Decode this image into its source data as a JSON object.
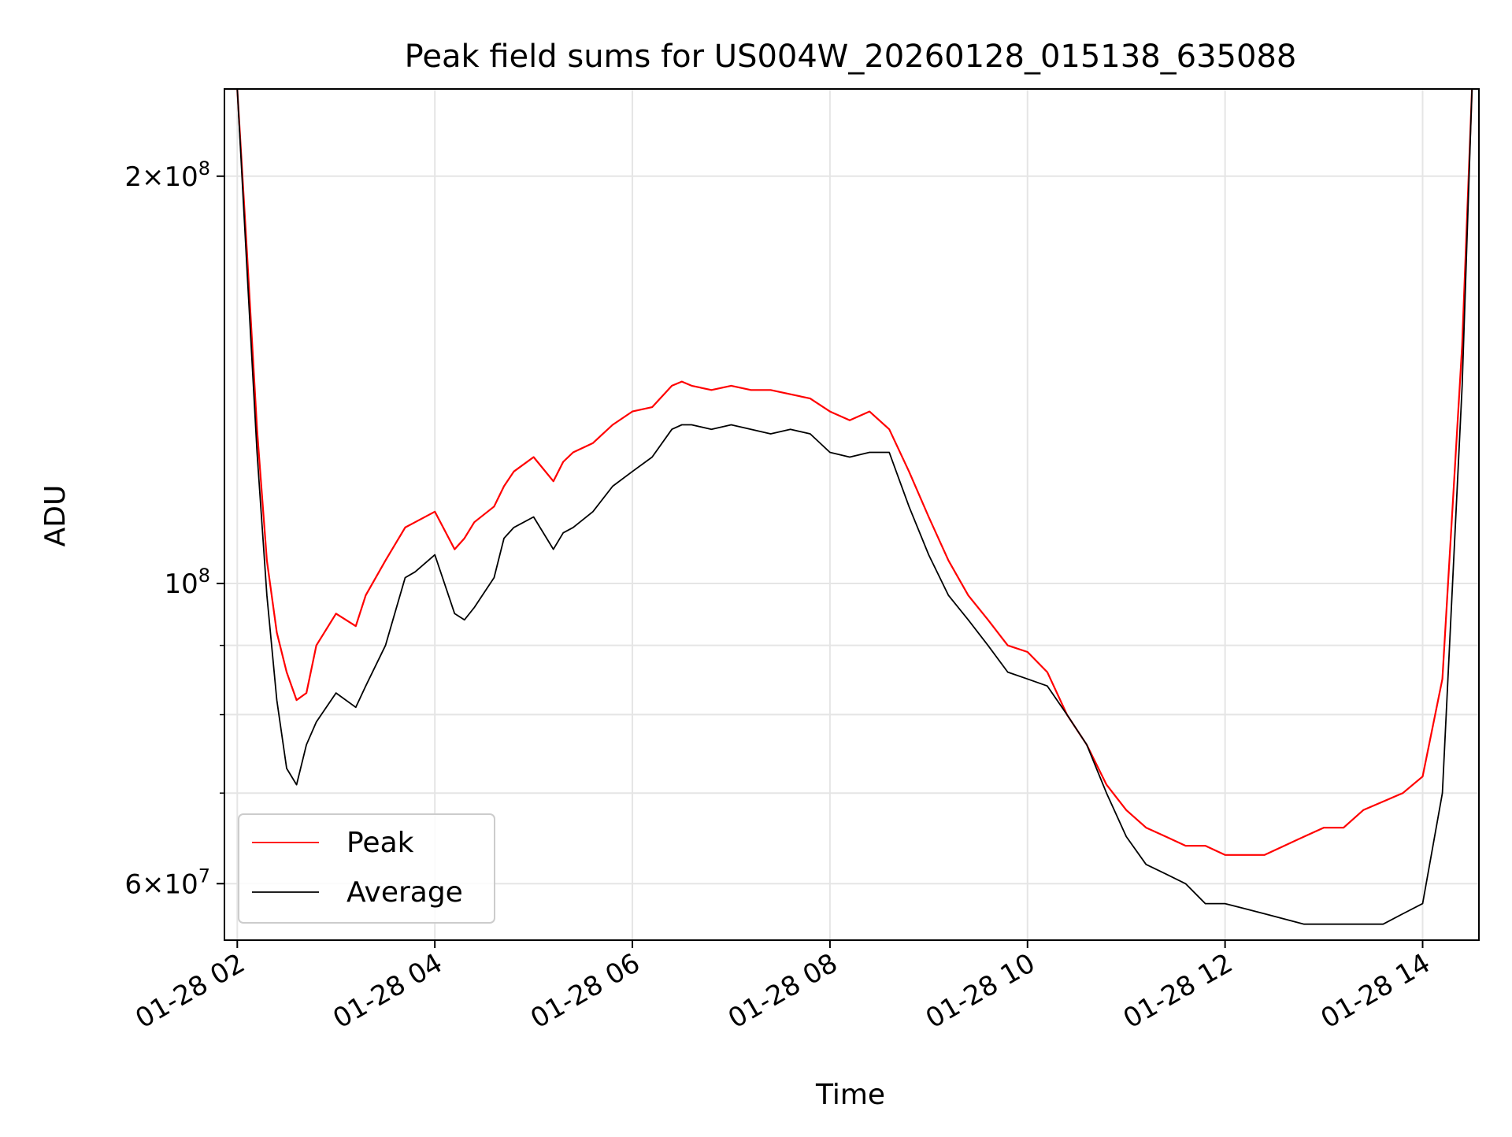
{
  "chart_data": {
    "type": "line",
    "title": "Peak field sums for US004W_20260128_015138_635088",
    "xlabel": "Time",
    "ylabel": "ADU",
    "yscale": "log",
    "xlim": [
      1.87,
      14.57
    ],
    "ylim": [
      54500000,
      232000000
    ],
    "grid": true,
    "legend_position": "lower-left",
    "x_ticks": [
      {
        "value": 2,
        "label": "01-28 02"
      },
      {
        "value": 4,
        "label": "01-28 04"
      },
      {
        "value": 6,
        "label": "01-28 06"
      },
      {
        "value": 8,
        "label": "01-28 08"
      },
      {
        "value": 10,
        "label": "01-28 10"
      },
      {
        "value": 12,
        "label": "01-28 12"
      },
      {
        "value": 14,
        "label": "01-28 14"
      }
    ],
    "y_ticks_major": [
      {
        "value": 100000000,
        "base": "10",
        "exp": "8",
        "coef": ""
      },
      {
        "value": 200000000,
        "base": "10",
        "exp": "8",
        "coef": "2"
      },
      {
        "value": 60000000,
        "base": "10",
        "exp": "7",
        "coef": "6"
      }
    ],
    "y_ticks_minor": [
      70000000,
      80000000,
      90000000
    ],
    "colors": {
      "peak": "#ff0000",
      "average": "#000000",
      "grid": "#e5e5e5"
    },
    "series": [
      {
        "name": "Peak",
        "color": "#ff0000",
        "x": [
          1.9,
          2.0,
          2.1,
          2.2,
          2.3,
          2.4,
          2.5,
          2.6,
          2.7,
          2.8,
          3.0,
          3.2,
          3.3,
          3.5,
          3.7,
          3.8,
          4.0,
          4.2,
          4.3,
          4.4,
          4.6,
          4.7,
          4.8,
          5.0,
          5.2,
          5.3,
          5.4,
          5.6,
          5.8,
          6.0,
          6.2,
          6.4,
          6.5,
          6.6,
          6.8,
          7.0,
          7.2,
          7.4,
          7.6,
          7.8,
          8.0,
          8.2,
          8.4,
          8.6,
          8.8,
          9.0,
          9.2,
          9.4,
          9.6,
          9.8,
          10.0,
          10.2,
          10.4,
          10.6,
          10.8,
          11.0,
          11.2,
          11.4,
          11.6,
          11.8,
          12.0,
          12.2,
          12.4,
          12.6,
          12.8,
          13.0,
          13.2,
          13.4,
          13.6,
          13.8,
          14.0,
          14.2,
          14.4,
          14.5
        ],
        "values": [
          232000000,
          232000000,
          175000000,
          130000000,
          104000000,
          92000000,
          86000000,
          82000000,
          83000000,
          90000000,
          95000000,
          93000000,
          98000000,
          104000000,
          110000000,
          111000000,
          113000000,
          106000000,
          108000000,
          111000000,
          114000000,
          118000000,
          121000000,
          124000000,
          119000000,
          123000000,
          125000000,
          127000000,
          131000000,
          134000000,
          135000000,
          140000000,
          141000000,
          140000000,
          139000000,
          140000000,
          139000000,
          139000000,
          138000000,
          137000000,
          134000000,
          132000000,
          134000000,
          130000000,
          121000000,
          112000000,
          104000000,
          98000000,
          94000000,
          90000000,
          89000000,
          86000000,
          80000000,
          76000000,
          71000000,
          68000000,
          66000000,
          65000000,
          64000000,
          64000000,
          63000000,
          63000000,
          63000000,
          64000000,
          65000000,
          66000000,
          66000000,
          68000000,
          69000000,
          70000000,
          72000000,
          85000000,
          150000000,
          232000000
        ]
      },
      {
        "name": "Average",
        "color": "#000000",
        "x": [
          1.9,
          2.0,
          2.1,
          2.2,
          2.3,
          2.4,
          2.5,
          2.6,
          2.7,
          2.8,
          3.0,
          3.2,
          3.3,
          3.5,
          3.7,
          3.8,
          4.0,
          4.2,
          4.3,
          4.4,
          4.6,
          4.7,
          4.8,
          5.0,
          5.2,
          5.3,
          5.4,
          5.6,
          5.8,
          6.0,
          6.2,
          6.4,
          6.5,
          6.6,
          6.8,
          7.0,
          7.2,
          7.4,
          7.6,
          7.8,
          8.0,
          8.2,
          8.4,
          8.6,
          8.8,
          9.0,
          9.2,
          9.4,
          9.6,
          9.8,
          10.0,
          10.2,
          10.4,
          10.6,
          10.8,
          11.0,
          11.2,
          11.4,
          11.6,
          11.8,
          12.0,
          12.2,
          12.4,
          12.6,
          12.8,
          13.0,
          13.2,
          13.4,
          13.6,
          13.8,
          14.0,
          14.2,
          14.4,
          14.5
        ],
        "values": [
          232000000,
          232000000,
          170000000,
          125000000,
          98000000,
          82000000,
          73000000,
          71000000,
          76000000,
          79000000,
          83000000,
          81000000,
          84000000,
          90000000,
          101000000,
          102000000,
          105000000,
          95000000,
          94000000,
          96000000,
          101000000,
          108000000,
          110000000,
          112000000,
          106000000,
          109000000,
          110000000,
          113000000,
          118000000,
          121000000,
          124000000,
          130000000,
          131000000,
          131000000,
          130000000,
          131000000,
          130000000,
          129000000,
          130000000,
          129000000,
          125000000,
          124000000,
          125000000,
          125000000,
          114000000,
          105000000,
          98000000,
          94000000,
          90000000,
          86000000,
          85000000,
          84000000,
          80000000,
          76000000,
          70000000,
          65000000,
          62000000,
          61000000,
          60000000,
          58000000,
          58000000,
          57500000,
          57000000,
          56500000,
          56000000,
          56000000,
          56000000,
          56000000,
          56000000,
          57000000,
          58000000,
          70000000,
          140000000,
          232000000
        ]
      }
    ]
  }
}
